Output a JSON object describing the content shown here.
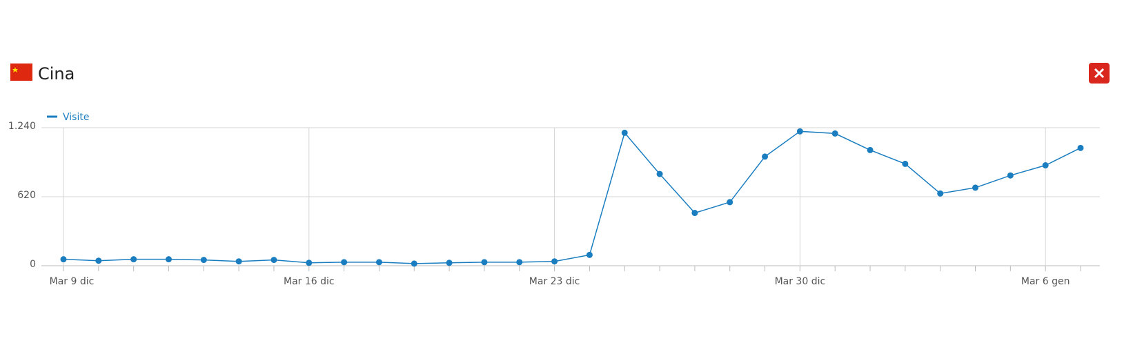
{
  "header": {
    "title": "Cina"
  },
  "chart_data": {
    "type": "line",
    "categories": [
      "Mar 9 dic",
      null,
      null,
      null,
      null,
      null,
      null,
      "Mar 16 dic",
      null,
      null,
      null,
      null,
      null,
      null,
      "Mar 23 dic",
      null,
      null,
      null,
      null,
      null,
      null,
      "Mar 30 dic",
      null,
      null,
      null,
      null,
      null,
      null,
      "Mar 6 gen",
      null
    ],
    "series": [
      {
        "name": "Visite",
        "color": "#1a7dc0",
        "values": [
          58,
          45,
          58,
          58,
          52,
          39,
          52,
          26,
          32,
          32,
          19,
          26,
          32,
          32,
          39,
          97,
          1194,
          824,
          474,
          571,
          980,
          1207,
          1188,
          1039,
          915,
          649,
          701,
          811,
          902,
          1058
        ]
      }
    ],
    "ylim": [
      0,
      1240
    ],
    "yticks": [
      0,
      620,
      {
        "value": 1240,
        "label": "1.240"
      }
    ],
    "grid": true
  }
}
